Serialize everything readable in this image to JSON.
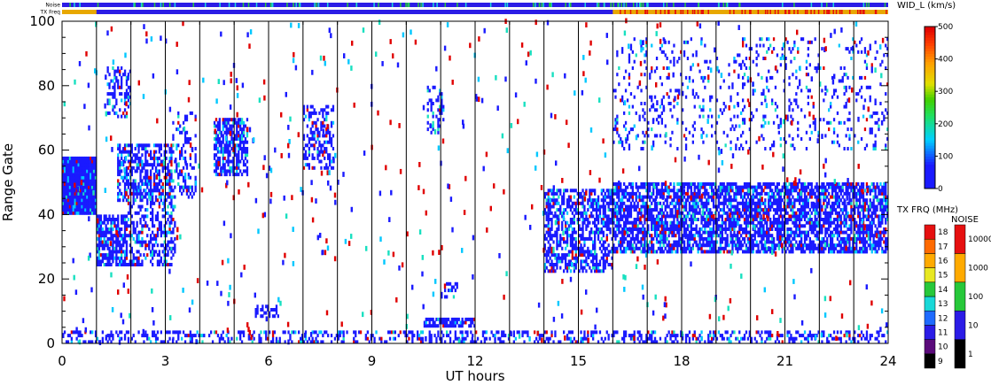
{
  "header": {
    "noise_label": "Noise",
    "txfreq_label": "TX Freq"
  },
  "chart_data": {
    "type": "heatmap",
    "xlabel": "UT hours",
    "ylabel": "Range Gate",
    "xlim": [
      0,
      24
    ],
    "ylim": [
      0,
      100
    ],
    "x_ticks": [
      0,
      3,
      6,
      9,
      12,
      15,
      18,
      21,
      24
    ],
    "y_ticks": [
      0,
      20,
      40,
      60,
      80,
      100
    ],
    "grid": "vertical lines at 1-hour intervals",
    "colorbar_wid": {
      "label": "WID_L (km/s)",
      "min": 0,
      "max": 500,
      "ticks": [
        0,
        100,
        200,
        300,
        400,
        500
      ]
    },
    "colorbar_txfreq": {
      "label": "TX FRQ (MHz)",
      "levels": [
        9,
        10,
        11,
        12,
        13,
        14,
        15,
        16,
        17,
        18
      ],
      "colors": [
        "#000000",
        "#5a0a7a",
        "#2b1ce6",
        "#1f6bff",
        "#19d8d8",
        "#27c83a",
        "#e8e822",
        "#ffaa00",
        "#ff6a00",
        "#e61010"
      ]
    },
    "colorbar_noise": {
      "label": "NOISE",
      "ticks": [
        "1",
        "10",
        "100",
        "1000",
        "10000"
      ],
      "colors": [
        "#000000",
        "#2b1ce6",
        "#27c83a",
        "#ffaa00",
        "#e61010"
      ]
    },
    "palette": {
      "dominant": "#1a1aff",
      "secondary": [
        "#00c8ff",
        "#18e0c0",
        "#e00000"
      ]
    },
    "echo_regions": [
      {
        "t0": 0.0,
        "t1": 1.0,
        "g0": 40,
        "g1": 58,
        "density": 1.0
      },
      {
        "t0": 1.0,
        "t1": 1.9,
        "g0": 24,
        "g1": 40,
        "density": 0.75
      },
      {
        "t0": 1.6,
        "t1": 3.2,
        "g0": 44,
        "g1": 62,
        "density": 0.6
      },
      {
        "t0": 1.9,
        "t1": 3.3,
        "g0": 24,
        "g1": 44,
        "density": 0.45
      },
      {
        "t0": 1.3,
        "t1": 2.0,
        "g0": 70,
        "g1": 86,
        "density": 0.4
      },
      {
        "t0": 3.2,
        "t1": 3.9,
        "g0": 45,
        "g1": 72,
        "density": 0.25
      },
      {
        "t0": 4.4,
        "t1": 5.4,
        "g0": 52,
        "g1": 70,
        "density": 0.65
      },
      {
        "t0": 7.0,
        "t1": 7.9,
        "g0": 54,
        "g1": 74,
        "density": 0.45
      },
      {
        "t0": 10.6,
        "t1": 11.1,
        "g0": 65,
        "g1": 80,
        "density": 0.3
      },
      {
        "t0": 14.0,
        "t1": 16.0,
        "g0": 22,
        "g1": 48,
        "density": 0.55
      },
      {
        "t0": 16.0,
        "t1": 24.0,
        "g0": 28,
        "g1": 50,
        "density": 0.7
      },
      {
        "t0": 16.0,
        "t1": 24.0,
        "g0": 60,
        "g1": 95,
        "density": 0.12
      },
      {
        "t0": 0.0,
        "t1": 24.0,
        "g0": 0,
        "g1": 4,
        "density": 0.35
      },
      {
        "t0": 10.5,
        "t1": 12.0,
        "g0": 5,
        "g1": 8,
        "density": 0.8
      },
      {
        "t0": 11.0,
        "t1": 11.5,
        "g0": 14,
        "g1": 19,
        "density": 0.4
      },
      {
        "t0": 5.6,
        "t1": 6.3,
        "g0": 8,
        "g1": 12,
        "density": 0.5
      }
    ]
  }
}
